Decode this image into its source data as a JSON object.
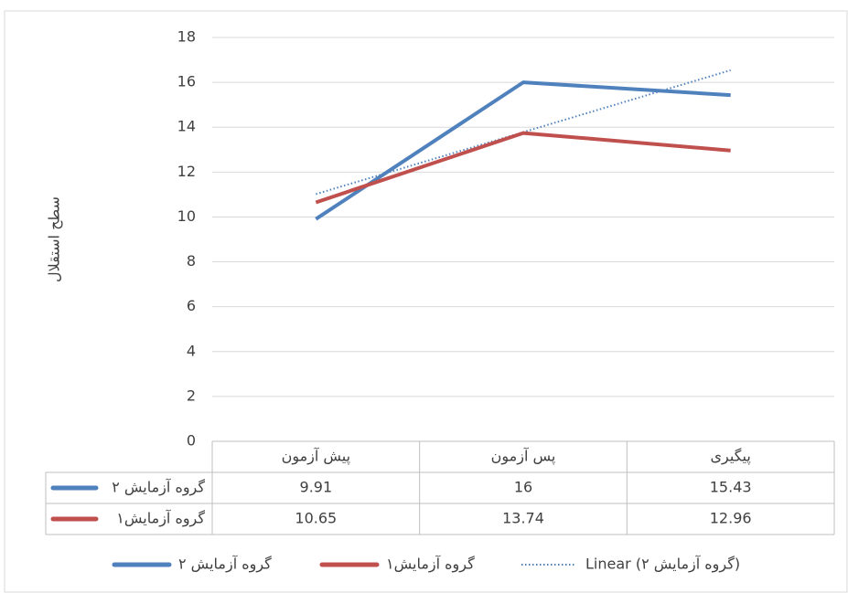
{
  "chart_data": {
    "type": "line",
    "y_label": "سطح استقلال",
    "categories": [
      "پیش آزمون",
      "پس آزمون",
      "پیگیری"
    ],
    "series": [
      {
        "name": "گروه آزمایش ۲",
        "color": "#4f81bd",
        "values": [
          9.91,
          16,
          15.43
        ]
      },
      {
        "name": "گروه آزمایش۱",
        "color": "#c0504d",
        "values": [
          10.65,
          13.74,
          12.96
        ]
      }
    ],
    "trendline": {
      "name": "Linear (گروه آزمایش ۲)",
      "color": "#4f81bd",
      "values": [
        11.02,
        13.78,
        16.54
      ]
    },
    "ylim": [
      0,
      18
    ],
    "yticks": [
      0,
      2,
      4,
      6,
      8,
      10,
      12,
      14,
      16,
      18
    ],
    "grid": true
  }
}
